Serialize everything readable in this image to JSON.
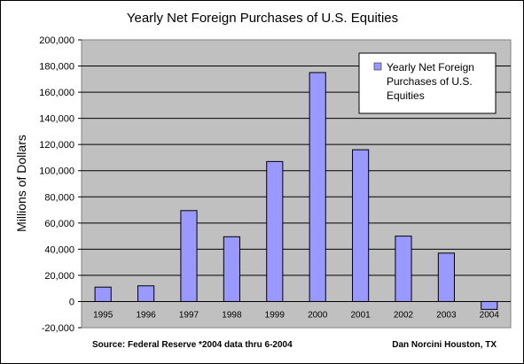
{
  "chart_data": {
    "type": "bar",
    "title": "Yearly Net Foreign Purchases of U.S. Equities",
    "ylabel": "Millions of Dollars",
    "xlabel": "",
    "categories": [
      "1995",
      "1996",
      "1997",
      "1998",
      "1999",
      "2000",
      "2001",
      "2002",
      "2003",
      "2004"
    ],
    "series": [
      {
        "name_lines": [
          "Yearly Net Foreign",
          "Purchases of U.S.",
          "Equities"
        ],
        "values": [
          11000,
          12000,
          69500,
          49500,
          107000,
          175000,
          116000,
          50000,
          37000,
          -6000
        ],
        "color": "#9999ff"
      }
    ],
    "ylim": [
      -20000,
      200000
    ],
    "yticks": [
      "200,000",
      "180,000",
      "160,000",
      "140,000",
      "120,000",
      "100,000",
      "80,000",
      "60,000",
      "40,000",
      "20,000",
      "0",
      "-20,000"
    ],
    "ytick_values": [
      200000,
      180000,
      160000,
      140000,
      120000,
      100000,
      80000,
      60000,
      40000,
      20000,
      0,
      -20000
    ],
    "grid": true,
    "legend_position": "top-right",
    "plot_background": "#c0c0c0",
    "page_background": "#ffffff"
  },
  "footer": {
    "source": "Source: Federal Reserve *2004 data thru 6-2004",
    "author": "Dan Norcini   Houston, TX"
  }
}
